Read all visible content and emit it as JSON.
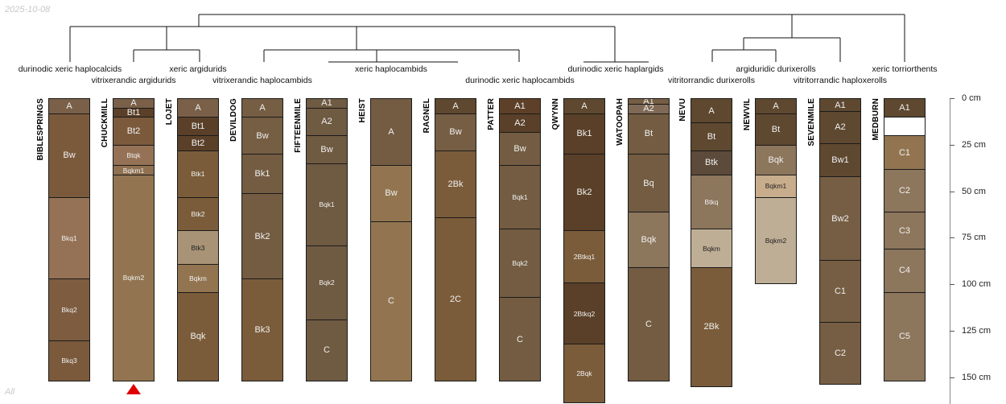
{
  "date": "2025-10-08",
  "group_label": "All",
  "depth_unit": "cm",
  "depth_ticks": [
    0,
    25,
    50,
    75,
    100,
    125,
    150
  ],
  "taxa": [
    "durinodic xeric haplocalcids",
    "vitrixerandic argidurids",
    "xeric argidurids",
    "vitrixerandic haplocambids",
    "xeric haplocambids",
    "durinodic xeric haplocambids",
    "durinodic xeric haplargids",
    "vitritorrandic durixerolls",
    "argiduridic durixerolls",
    "vitritorrandic haploxerolls",
    "xeric torriorthents"
  ],
  "truncated_marker_color": "#e00000",
  "profiles": [
    {
      "name": "BIBLESPRINGS",
      "horizons": [
        [
          "A",
          0,
          8,
          "#7a6048"
        ],
        [
          "Bw",
          8,
          53,
          "#7b5a3c"
        ],
        [
          "Bkq1",
          53,
          97,
          "#957256"
        ],
        [
          "Bkq2",
          97,
          130,
          "#7d5c40"
        ],
        [
          "Bkq3",
          130,
          152,
          "#7b5a3c"
        ]
      ]
    },
    {
      "name": "CHUCKMILL",
      "truncated": true,
      "horizons": [
        [
          "A",
          0,
          5,
          "#7a6048"
        ],
        [
          "Bt1",
          5,
          10,
          "#5a4028"
        ],
        [
          "Bt2",
          10,
          25,
          "#7b5a3c"
        ],
        [
          "Btqk",
          25,
          36,
          "#957256"
        ],
        [
          "Bqkm1",
          36,
          41,
          "#8f7050"
        ],
        [
          "Bqkm2",
          41,
          152,
          "#927550"
        ]
      ]
    },
    {
      "name": "LOJET",
      "horizons": [
        [
          "A",
          0,
          10,
          "#7a6048"
        ],
        [
          "Bt1",
          10,
          20,
          "#5a4028"
        ],
        [
          "Bt2",
          20,
          28,
          "#5a4028"
        ],
        [
          "Btk1",
          28,
          53,
          "#7b5c3a"
        ],
        [
          "Btk2",
          53,
          71,
          "#7b5c3a"
        ],
        [
          "Btk3",
          71,
          89,
          "#a89377"
        ],
        [
          "Bqkm",
          89,
          104,
          "#927550"
        ],
        [
          "Bqk",
          104,
          152,
          "#7b5c3a"
        ]
      ]
    },
    {
      "name": "DEVILDOG",
      "horizons": [
        [
          "A",
          0,
          10,
          "#765e44"
        ],
        [
          "Bw",
          10,
          30,
          "#765e44"
        ],
        [
          "Bk1",
          30,
          51,
          "#735c42"
        ],
        [
          "Bk2",
          51,
          97,
          "#735c42"
        ],
        [
          "Bk3",
          97,
          152,
          "#7b5c3a"
        ]
      ]
    },
    {
      "name": "FIFTEENMILE",
      "horizons": [
        [
          "A1",
          0,
          5,
          "#6f5a42"
        ],
        [
          "A2",
          5,
          20,
          "#6f5a42"
        ],
        [
          "Bw",
          20,
          35,
          "#6f5a42"
        ],
        [
          "Bqk1",
          35,
          79,
          "#6f5a42"
        ],
        [
          "Bqk2",
          79,
          119,
          "#6f5a42"
        ],
        [
          "C",
          119,
          152,
          "#6f5a42"
        ]
      ]
    },
    {
      "name": "HEIST",
      "horizons": [
        [
          "A",
          0,
          36,
          "#735c42"
        ],
        [
          "Bw",
          36,
          66,
          "#927550"
        ],
        [
          "C",
          66,
          152,
          "#927550"
        ]
      ]
    },
    {
      "name": "RAGNEL",
      "horizons": [
        [
          "A",
          0,
          8,
          "#5e4830"
        ],
        [
          "Bw",
          8,
          28,
          "#765e44"
        ],
        [
          "2Bk",
          28,
          64,
          "#7b5c3a"
        ],
        [
          "2C",
          64,
          152,
          "#7b5c3a"
        ]
      ]
    },
    {
      "name": "PATTER",
      "horizons": [
        [
          "A1",
          0,
          8,
          "#5e4028"
        ],
        [
          "A2",
          8,
          18,
          "#5a4028"
        ],
        [
          "Bw",
          18,
          36,
          "#735c42"
        ],
        [
          "Bqk1",
          36,
          70,
          "#735c42"
        ],
        [
          "Bqk2",
          70,
          107,
          "#735c42"
        ],
        [
          "C",
          107,
          152,
          "#735c42"
        ]
      ]
    },
    {
      "name": "QWYNN",
      "horizons": [
        [
          "A",
          0,
          8,
          "#5e4830"
        ],
        [
          "Bk1",
          8,
          30,
          "#5a4028"
        ],
        [
          "Bk2",
          30,
          71,
          "#5a4028"
        ],
        [
          "2Btkq1",
          71,
          99,
          "#7b5c3a"
        ],
        [
          "2Btkq2",
          99,
          132,
          "#5a4028"
        ],
        [
          "2Bqk",
          132,
          164,
          "#7b5c3a"
        ]
      ]
    },
    {
      "name": "WATOOPAH",
      "horizons": [
        [
          "A1",
          0,
          3,
          "#765e44"
        ],
        [
          "A2",
          3,
          8,
          "#806a55"
        ],
        [
          "Bt",
          8,
          30,
          "#735c42"
        ],
        [
          "Bq",
          30,
          61,
          "#735c42"
        ],
        [
          "Bqk",
          61,
          91,
          "#8c765c"
        ],
        [
          "C",
          91,
          152,
          "#735c42"
        ]
      ]
    },
    {
      "name": "NEVU",
      "horizons": [
        [
          "A",
          0,
          13,
          "#5e4830"
        ],
        [
          "Bt",
          13,
          28,
          "#5e4830"
        ],
        [
          "Btk",
          28,
          41,
          "#5c4a3a"
        ],
        [
          "Btkq",
          41,
          70,
          "#8c765c"
        ],
        [
          "Bqkm",
          70,
          91,
          "#bfae96"
        ],
        [
          "2Bk",
          91,
          155,
          "#7b5c3a"
        ]
      ]
    },
    {
      "name": "NEWVIL",
      "horizons": [
        [
          "A",
          0,
          8,
          "#5e4830"
        ],
        [
          "Bt",
          8,
          25,
          "#5e4830"
        ],
        [
          "Bqk",
          25,
          41,
          "#8c765c"
        ],
        [
          "Bqkm1",
          41,
          53,
          "#c8ad8c"
        ],
        [
          "Bqkm2",
          53,
          100,
          "#bfae96"
        ]
      ]
    },
    {
      "name": "SEVENMILE",
      "horizons": [
        [
          "A1",
          0,
          7,
          "#5e4830"
        ],
        [
          "A2",
          7,
          24,
          "#5e4830"
        ],
        [
          "Bw1",
          24,
          42,
          "#5e4830"
        ],
        [
          "Bw2",
          42,
          87,
          "#765e44"
        ],
        [
          "C1",
          87,
          120,
          "#765e44"
        ],
        [
          "C2",
          120,
          154,
          "#765e44"
        ]
      ]
    },
    {
      "name": "MEDBURN",
      "horizons": [
        [
          "A1",
          0,
          10,
          "#5e4830"
        ],
        [
          "",
          10,
          20,
          "#ffffff"
        ],
        [
          "C1",
          20,
          38,
          "#927550"
        ],
        [
          "C2",
          38,
          61,
          "#8c765c"
        ],
        [
          "C3",
          61,
          81,
          "#8c765c"
        ],
        [
          "C4",
          81,
          104,
          "#8c765c"
        ],
        [
          "C5",
          104,
          152,
          "#8c765c"
        ]
      ]
    }
  ]
}
